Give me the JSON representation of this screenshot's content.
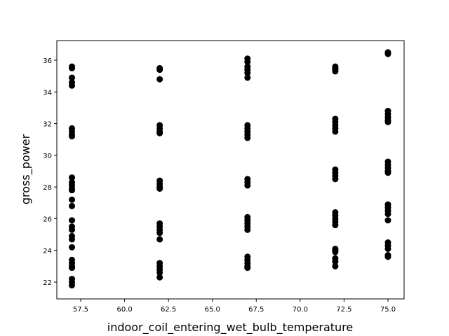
{
  "chart_data": {
    "type": "scatter",
    "x_label": "indoor_coil_entering_wet_bulb_temperature",
    "y_label": "gross_power",
    "color": "#000000",
    "xlim": [
      56.14,
      75.92
    ],
    "ylim": [
      20.94,
      37.24
    ],
    "xticks": [
      57.5,
      {
        "value": 60,
        "label": "60.0"
      },
      62.5,
      {
        "value": 65,
        "label": "65.0"
      },
      67.5,
      {
        "value": 70,
        "label": "70.0"
      },
      72.5,
      {
        "value": 75,
        "label": "75.0"
      }
    ],
    "yticks": [
      22,
      24,
      26,
      28,
      30,
      32,
      34,
      36
    ],
    "x": [
      57,
      57,
      57,
      57,
      57,
      57,
      57,
      57,
      57,
      57,
      57,
      57,
      57,
      57,
      57,
      57,
      57,
      57,
      57,
      57,
      57,
      57,
      57,
      57,
      57,
      57,
      57,
      57,
      57,
      62,
      62,
      62,
      62,
      62,
      62,
      62,
      62,
      62,
      62,
      62,
      62,
      62,
      62,
      62,
      62,
      62,
      62,
      62,
      62,
      62,
      67,
      67,
      67,
      67,
      67,
      67,
      67,
      67,
      67,
      67,
      67,
      67,
      67,
      67,
      67,
      67,
      67,
      67,
      67,
      67,
      67,
      67,
      67,
      67,
      72,
      72,
      72,
      72,
      72,
      72,
      72,
      72,
      72,
      72,
      72,
      72,
      72,
      72,
      72,
      72,
      72,
      72,
      72,
      72,
      72,
      72,
      72,
      72,
      75,
      75,
      75,
      75,
      75,
      75,
      75,
      75,
      75,
      75,
      75,
      75,
      75,
      75,
      75,
      75,
      75,
      75,
      75,
      75,
      75,
      75
    ],
    "y": [
      35.6,
      35.5,
      34.9,
      34.6,
      34.4,
      31.7,
      31.5,
      31.3,
      31.2,
      28.6,
      28.3,
      28.1,
      27.9,
      27.8,
      27.2,
      26.8,
      25.9,
      25.5,
      25.3,
      24.9,
      24.7,
      24.2,
      23.4,
      23.2,
      23.0,
      22.9,
      22.2,
      22.0,
      21.8,
      35.5,
      35.4,
      34.8,
      31.9,
      31.7,
      31.5,
      31.4,
      28.4,
      28.2,
      28.0,
      27.9,
      25.7,
      25.5,
      25.3,
      25.1,
      24.7,
      23.2,
      23.0,
      22.8,
      22.6,
      22.3,
      36.1,
      35.9,
      35.6,
      35.4,
      35.2,
      34.9,
      31.9,
      31.7,
      31.5,
      31.3,
      31.1,
      28.5,
      28.3,
      28.1,
      26.1,
      25.9,
      25.7,
      25.5,
      25.3,
      23.6,
      23.4,
      23.2,
      23.0,
      22.9,
      35.6,
      35.5,
      35.4,
      35.3,
      32.3,
      32.1,
      31.9,
      31.7,
      31.5,
      29.1,
      28.9,
      28.7,
      28.5,
      26.4,
      26.2,
      26.0,
      25.8,
      25.6,
      24.1,
      24.0,
      23.9,
      23.5,
      23.3,
      23.0,
      36.5,
      36.4,
      32.8,
      32.6,
      32.4,
      32.2,
      32.1,
      29.6,
      29.4,
      29.2,
      29.0,
      28.9,
      26.9,
      26.7,
      26.5,
      26.3,
      25.9,
      24.5,
      24.3,
      24.1,
      23.7,
      23.6
    ]
  }
}
